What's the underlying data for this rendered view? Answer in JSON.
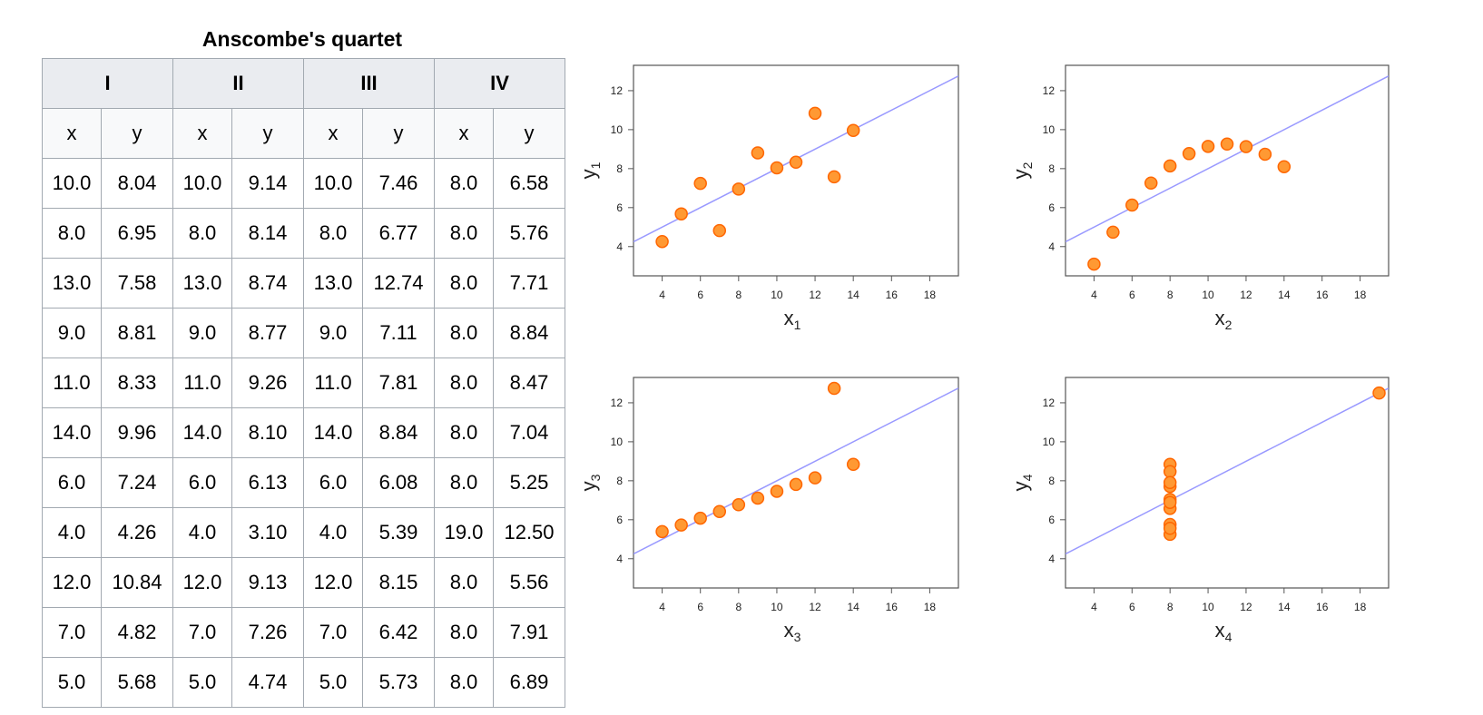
{
  "title": "Anscombe's quartet",
  "table": {
    "groups": [
      "I",
      "II",
      "III",
      "IV"
    ],
    "subheaders": [
      "x",
      "y"
    ],
    "rows": [
      [
        "10.0",
        "8.04",
        "10.0",
        "9.14",
        "10.0",
        "7.46",
        "8.0",
        "6.58"
      ],
      [
        "8.0",
        "6.95",
        "8.0",
        "8.14",
        "8.0",
        "6.77",
        "8.0",
        "5.76"
      ],
      [
        "13.0",
        "7.58",
        "13.0",
        "8.74",
        "13.0",
        "12.74",
        "8.0",
        "7.71"
      ],
      [
        "9.0",
        "8.81",
        "9.0",
        "8.77",
        "9.0",
        "7.11",
        "8.0",
        "8.84"
      ],
      [
        "11.0",
        "8.33",
        "11.0",
        "9.26",
        "11.0",
        "7.81",
        "8.0",
        "8.47"
      ],
      [
        "14.0",
        "9.96",
        "14.0",
        "8.10",
        "14.0",
        "8.84",
        "8.0",
        "7.04"
      ],
      [
        "6.0",
        "7.24",
        "6.0",
        "6.13",
        "6.0",
        "6.08",
        "8.0",
        "5.25"
      ],
      [
        "4.0",
        "4.26",
        "4.0",
        "3.10",
        "4.0",
        "5.39",
        "19.0",
        "12.50"
      ],
      [
        "12.0",
        "10.84",
        "12.0",
        "9.13",
        "12.0",
        "8.15",
        "8.0",
        "5.56"
      ],
      [
        "7.0",
        "4.82",
        "7.0",
        "7.26",
        "7.0",
        "6.42",
        "8.0",
        "7.91"
      ],
      [
        "5.0",
        "5.68",
        "5.0",
        "4.74",
        "5.0",
        "5.73",
        "8.0",
        "6.89"
      ]
    ]
  },
  "colors": {
    "point_fill": "#ff9933",
    "point_stroke": "#ff6600",
    "regression_line": "#9999ff",
    "frame": "#555555",
    "header_bg": "#eaecf0"
  },
  "chart_data": [
    {
      "type": "scatter",
      "xlabel": "x",
      "xlabel_sub": "1",
      "ylabel": "y",
      "ylabel_sub": "1",
      "xlim": [
        2.5,
        19.5
      ],
      "ylim": [
        2.5,
        13.3
      ],
      "xticks": [
        4,
        6,
        8,
        10,
        12,
        14,
        16,
        18
      ],
      "yticks": [
        4,
        6,
        8,
        10,
        12
      ],
      "x": [
        10,
        8,
        13,
        9,
        11,
        14,
        6,
        4,
        12,
        7,
        5
      ],
      "y": [
        8.04,
        6.95,
        7.58,
        8.81,
        8.33,
        9.96,
        7.24,
        4.26,
        10.84,
        4.82,
        5.68
      ],
      "regression": {
        "intercept": 3.0,
        "slope": 0.5
      }
    },
    {
      "type": "scatter",
      "xlabel": "x",
      "xlabel_sub": "2",
      "ylabel": "y",
      "ylabel_sub": "2",
      "xlim": [
        2.5,
        19.5
      ],
      "ylim": [
        2.5,
        13.3
      ],
      "xticks": [
        4,
        6,
        8,
        10,
        12,
        14,
        16,
        18
      ],
      "yticks": [
        4,
        6,
        8,
        10,
        12
      ],
      "x": [
        10,
        8,
        13,
        9,
        11,
        14,
        6,
        4,
        12,
        7,
        5
      ],
      "y": [
        9.14,
        8.14,
        8.74,
        8.77,
        9.26,
        8.1,
        6.13,
        3.1,
        9.13,
        7.26,
        4.74
      ],
      "regression": {
        "intercept": 3.0,
        "slope": 0.5
      }
    },
    {
      "type": "scatter",
      "xlabel": "x",
      "xlabel_sub": "3",
      "ylabel": "y",
      "ylabel_sub": "3",
      "xlim": [
        2.5,
        19.5
      ],
      "ylim": [
        2.5,
        13.3
      ],
      "xticks": [
        4,
        6,
        8,
        10,
        12,
        14,
        16,
        18
      ],
      "yticks": [
        4,
        6,
        8,
        10,
        12
      ],
      "x": [
        10,
        8,
        13,
        9,
        11,
        14,
        6,
        4,
        12,
        7,
        5
      ],
      "y": [
        7.46,
        6.77,
        12.74,
        7.11,
        7.81,
        8.84,
        6.08,
        5.39,
        8.15,
        6.42,
        5.73
      ],
      "regression": {
        "intercept": 3.0,
        "slope": 0.5
      }
    },
    {
      "type": "scatter",
      "xlabel": "x",
      "xlabel_sub": "4",
      "ylabel": "y",
      "ylabel_sub": "4",
      "xlim": [
        2.5,
        19.5
      ],
      "ylim": [
        2.5,
        13.3
      ],
      "xticks": [
        4,
        6,
        8,
        10,
        12,
        14,
        16,
        18
      ],
      "yticks": [
        4,
        6,
        8,
        10,
        12
      ],
      "x": [
        8,
        8,
        8,
        8,
        8,
        8,
        8,
        19,
        8,
        8,
        8
      ],
      "y": [
        6.58,
        5.76,
        7.71,
        8.84,
        8.47,
        7.04,
        5.25,
        12.5,
        5.56,
        7.91,
        6.89
      ],
      "regression": {
        "intercept": 3.0,
        "slope": 0.5
      }
    }
  ]
}
